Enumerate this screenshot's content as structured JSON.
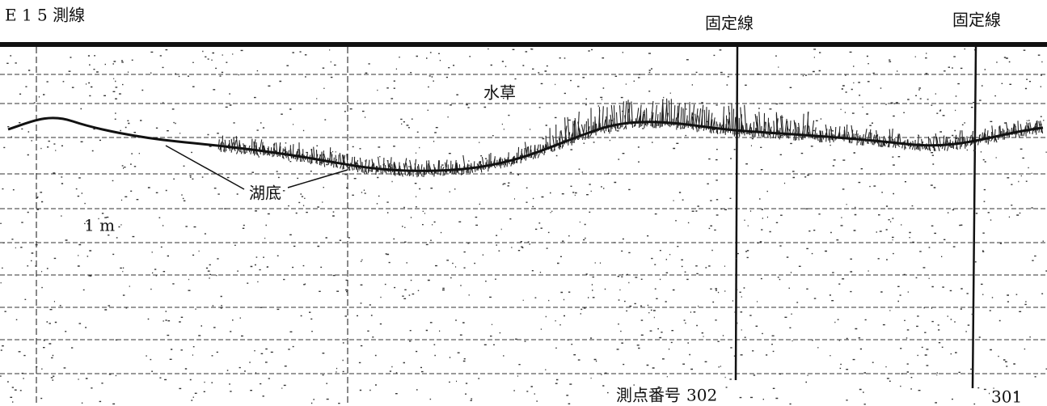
{
  "header": {
    "title": "E 1 5 測線",
    "fixed_lines": [
      "固定線",
      "固定線"
    ]
  },
  "labels": {
    "aquatic_plants": "水草",
    "lake_bottom": "湖底",
    "scale": "1 m"
  },
  "stations": {
    "caption": "測点番号",
    "numbers": [
      "302",
      "301"
    ]
  }
}
